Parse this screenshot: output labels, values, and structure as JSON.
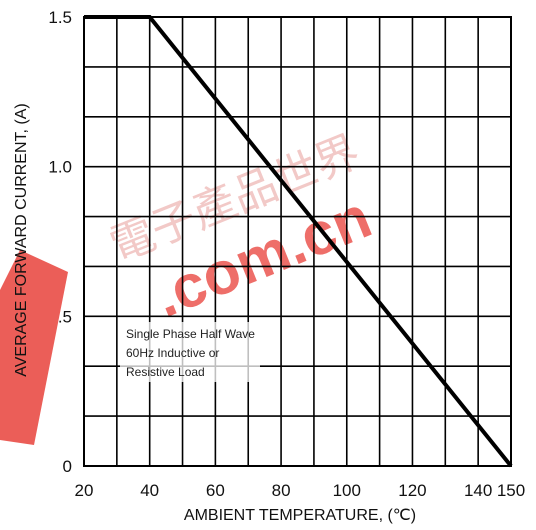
{
  "chart_data": {
    "type": "line",
    "xlabel": "AMBIENT TEMPERATURE, (℃)",
    "ylabel": "AVERAGE FORWARD CURRENT, (A)",
    "xlim": [
      20,
      150
    ],
    "ylim": [
      0,
      1.5
    ],
    "x_ticks": [
      {
        "value": 20,
        "label": "20"
      },
      {
        "value": 40,
        "label": "40"
      },
      {
        "value": 60,
        "label": "60"
      },
      {
        "value": 80,
        "label": "80"
      },
      {
        "value": 100,
        "label": "100"
      },
      {
        "value": 120,
        "label": "120"
      },
      {
        "value": 140,
        "label": "140"
      },
      {
        "value": 150,
        "label": "150"
      }
    ],
    "y_ticks": [
      {
        "value": 0,
        "label": "0"
      },
      {
        "value": 0.5,
        "label": ".5"
      },
      {
        "value": 1.0,
        "label": "1.0"
      },
      {
        "value": 1.5,
        "label": "1.5"
      }
    ],
    "grid": true,
    "series": [
      {
        "x": [
          20,
          40,
          150
        ],
        "y": [
          1.5,
          1.5,
          0
        ]
      }
    ],
    "annotations": [
      "Single Phase Half Wave",
      "60Hz Inductive or",
      "Resistive Load"
    ],
    "colors": {
      "line": "#000000",
      "grid": "#000000"
    }
  },
  "watermark": {
    "logo_text": ".com.cn",
    "cjk_text": "電子產品世界",
    "color": "#e8413a"
  }
}
